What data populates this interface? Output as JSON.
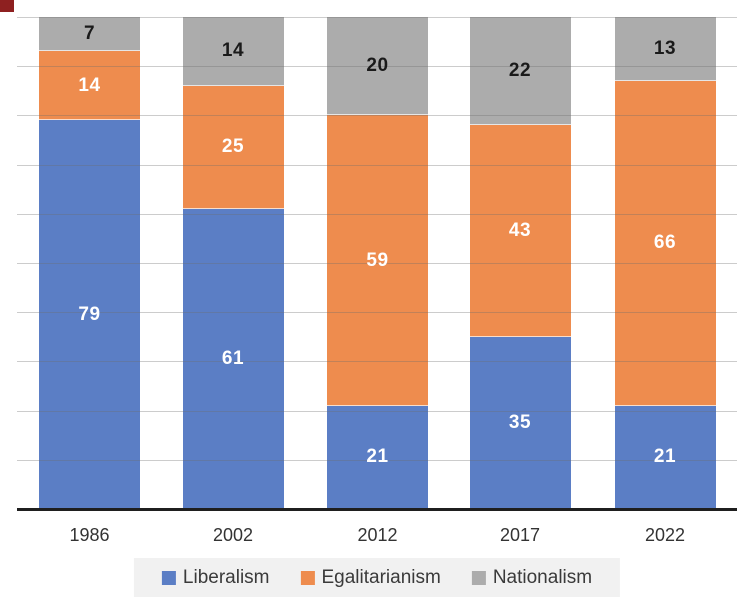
{
  "decoration": {
    "corner_mark_color": "#8E2020"
  },
  "chart_data": {
    "type": "bar",
    "stacked": true,
    "title": "",
    "xlabel": "",
    "ylabel": "",
    "categories": [
      "1986",
      "2002",
      "2012",
      "2017",
      "2022"
    ],
    "series": [
      {
        "name": "Liberalism",
        "color": "#5B7EC5",
        "label_color": "#FFFFFF",
        "values": [
          79,
          61,
          21,
          35,
          21
        ]
      },
      {
        "name": "Egalitarianism",
        "color": "#EE8C4E",
        "label_color": "#FFFFFF",
        "values": [
          14,
          25,
          59,
          43,
          66
        ]
      },
      {
        "name": "Nationalism",
        "color": "#ACACAC",
        "label_color": "#1A1A1A",
        "values": [
          7,
          14,
          20,
          22,
          13
        ]
      }
    ],
    "ylim": [
      0,
      100
    ],
    "gridline_interval": 10,
    "grid": true,
    "y_axis_labels_visible": false,
    "legend_position": "bottom",
    "legend_background": "#F1F1F1",
    "gridline_color": "#D2D2D2",
    "axis_line_color": "#1F1F1F"
  }
}
